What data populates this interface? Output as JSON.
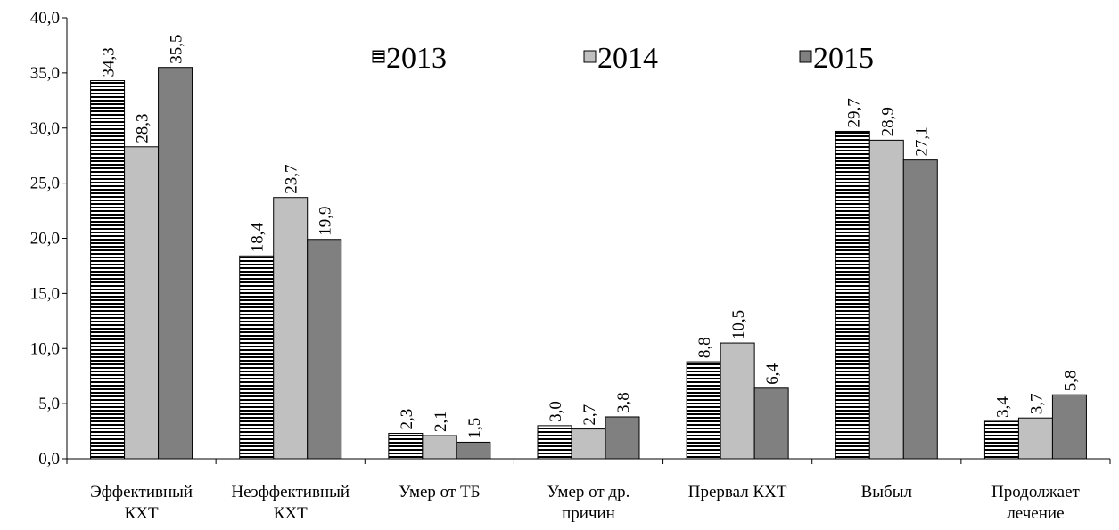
{
  "chart_data": {
    "type": "bar",
    "categories": [
      [
        "Эффективный",
        "КХТ"
      ],
      [
        "Неэффективный",
        "КХТ"
      ],
      [
        "Умер от ТБ"
      ],
      [
        "Умер от др.",
        "причин"
      ],
      [
        "Прервал КХТ"
      ],
      [
        "Выбыл"
      ],
      [
        "Продолжает",
        "лечение"
      ]
    ],
    "series": [
      {
        "name": "2013",
        "color": "#000000",
        "pattern": "horizontal-stripes",
        "values": [
          34.3,
          18.4,
          2.3,
          3.0,
          8.8,
          29.7,
          3.4
        ],
        "value_labels": [
          "34,3",
          "18,4",
          "2,3",
          "3,0",
          "8,8",
          "29,7",
          "3,4"
        ]
      },
      {
        "name": "2014",
        "color": "#c0c0c0",
        "values": [
          28.3,
          23.7,
          2.1,
          2.7,
          10.5,
          28.9,
          3.7
        ],
        "value_labels": [
          "28,3",
          "23,7",
          "2,1",
          "2,7",
          "10,5",
          "28,9",
          "3,7"
        ]
      },
      {
        "name": "2015",
        "color": "#808080",
        "values": [
          35.5,
          19.9,
          1.5,
          3.8,
          6.4,
          27.1,
          5.8
        ],
        "value_labels": [
          "35,5",
          "19,9",
          "1,5",
          "3,8",
          "6,4",
          "27,1",
          "5,8"
        ]
      }
    ],
    "ylim": [
      0,
      40
    ],
    "yticks": [
      {
        "value": 0,
        "label": "0,0"
      },
      {
        "value": 5,
        "label": "5,0"
      },
      {
        "value": 10,
        "label": "10,0"
      },
      {
        "value": 15,
        "label": "15,0"
      },
      {
        "value": 20,
        "label": "20,0"
      },
      {
        "value": 25,
        "label": "25,0"
      },
      {
        "value": 30,
        "label": "30,0"
      },
      {
        "value": 35,
        "label": "35,0"
      },
      {
        "value": 40,
        "label": "40,0"
      }
    ],
    "legend": "top"
  }
}
